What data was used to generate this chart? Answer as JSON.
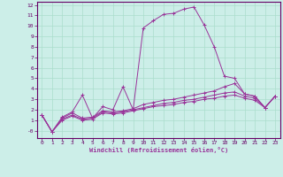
{
  "xlabel": "Windchill (Refroidissement éolien,°C)",
  "background_color": "#cceee8",
  "grid_color": "#aaddcc",
  "line_color": "#993399",
  "xlim": [
    -0.5,
    23.5
  ],
  "ylim": [
    -0.7,
    12.3
  ],
  "xticks": [
    0,
    1,
    2,
    3,
    4,
    5,
    6,
    7,
    8,
    9,
    10,
    11,
    12,
    13,
    14,
    15,
    16,
    17,
    18,
    19,
    20,
    21,
    22,
    23
  ],
  "yticks": [
    0,
    1,
    2,
    3,
    4,
    5,
    6,
    7,
    8,
    9,
    10,
    11,
    12
  ],
  "ytick_labels": [
    "-0",
    "1",
    "2",
    "3",
    "4",
    "5",
    "6",
    "7",
    "8",
    "9",
    "10",
    "11",
    "12"
  ],
  "series": [
    {
      "x": [
        0,
        1,
        2,
        3,
        4,
        5,
        6,
        7,
        8,
        9,
        10,
        11,
        12,
        13,
        14,
        15,
        16,
        17,
        18,
        19,
        20,
        21,
        22,
        23
      ],
      "y": [
        1.5,
        -0.1,
        1.3,
        1.8,
        3.4,
        1.2,
        2.3,
        2.0,
        4.2,
        2.0,
        9.8,
        10.5,
        11.1,
        11.2,
        11.6,
        11.8,
        10.1,
        8.0,
        5.2,
        5.0,
        3.5,
        3.3,
        2.2,
        3.3
      ]
    },
    {
      "x": [
        0,
        1,
        2,
        3,
        4,
        5,
        6,
        7,
        8,
        9,
        10,
        11,
        12,
        13,
        14,
        15,
        16,
        17,
        18,
        19,
        20,
        21,
        22,
        23
      ],
      "y": [
        1.5,
        -0.1,
        1.2,
        1.7,
        1.2,
        1.3,
        1.9,
        1.8,
        1.9,
        2.1,
        2.5,
        2.7,
        2.9,
        3.0,
        3.2,
        3.4,
        3.6,
        3.8,
        4.2,
        4.5,
        3.5,
        3.3,
        2.2,
        3.3
      ]
    },
    {
      "x": [
        0,
        1,
        2,
        3,
        4,
        5,
        6,
        7,
        8,
        9,
        10,
        11,
        12,
        13,
        14,
        15,
        16,
        17,
        18,
        19,
        20,
        21,
        22,
        23
      ],
      "y": [
        1.5,
        -0.1,
        1.1,
        1.5,
        1.1,
        1.2,
        1.8,
        1.7,
        1.8,
        2.0,
        2.2,
        2.4,
        2.6,
        2.7,
        2.9,
        3.0,
        3.2,
        3.4,
        3.6,
        3.7,
        3.3,
        3.1,
        2.2,
        3.3
      ]
    },
    {
      "x": [
        0,
        1,
        2,
        3,
        4,
        5,
        6,
        7,
        8,
        9,
        10,
        11,
        12,
        13,
        14,
        15,
        16,
        17,
        18,
        19,
        20,
        21,
        22,
        23
      ],
      "y": [
        1.5,
        -0.1,
        1.0,
        1.4,
        1.0,
        1.1,
        1.7,
        1.6,
        1.7,
        1.9,
        2.1,
        2.3,
        2.4,
        2.5,
        2.7,
        2.8,
        3.0,
        3.1,
        3.3,
        3.4,
        3.1,
        2.9,
        2.2,
        3.3
      ]
    }
  ]
}
